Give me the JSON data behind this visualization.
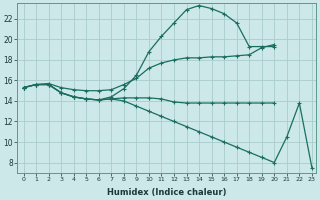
{
  "xlabel": "Humidex (Indice chaleur)",
  "bg_color": "#cce8e8",
  "grid_color": "#aacccc",
  "line_color": "#1a6e60",
  "xlim_min": -0.5,
  "xlim_max": 23.3,
  "ylim_min": 7,
  "ylim_max": 23.5,
  "xticks": [
    0,
    1,
    2,
    3,
    4,
    5,
    6,
    7,
    8,
    9,
    10,
    11,
    12,
    13,
    14,
    15,
    16,
    17,
    18,
    19,
    20,
    21,
    22,
    23
  ],
  "yticks": [
    8,
    10,
    12,
    14,
    16,
    18,
    20,
    22
  ],
  "line1_x": [
    0,
    1,
    2,
    3,
    4,
    5,
    6,
    7,
    8,
    9,
    10,
    11,
    12,
    13,
    14,
    15,
    16,
    17,
    18,
    19,
    20
  ],
  "line1_y": [
    15.3,
    15.6,
    15.6,
    14.8,
    14.4,
    14.2,
    14.1,
    14.2,
    14.3,
    14.3,
    14.3,
    14.2,
    13.9,
    13.8,
    13.8,
    13.8,
    13.8,
    13.8,
    13.8,
    13.8,
    13.8
  ],
  "line2_x": [
    0,
    1,
    2,
    3,
    4,
    5,
    6,
    7,
    8,
    9,
    10,
    11,
    12,
    13,
    14,
    15,
    16,
    17,
    18,
    19,
    20
  ],
  "line2_y": [
    15.3,
    15.6,
    15.6,
    14.8,
    14.4,
    14.2,
    14.1,
    14.4,
    15.2,
    16.5,
    18.8,
    20.3,
    21.6,
    22.9,
    23.3,
    23.0,
    22.5,
    21.6,
    19.3,
    19.3,
    19.3
  ],
  "line3_x": [
    0,
    1,
    2,
    3,
    4,
    5,
    6,
    7,
    8,
    9,
    10,
    11,
    12,
    13,
    14,
    15,
    16,
    17,
    18,
    19,
    20
  ],
  "line3_y": [
    15.3,
    15.6,
    15.7,
    15.3,
    15.1,
    15.0,
    15.0,
    15.1,
    15.6,
    16.2,
    17.2,
    17.7,
    18.0,
    18.2,
    18.2,
    18.3,
    18.3,
    18.4,
    18.5,
    19.2,
    19.5
  ],
  "line4_x": [
    0,
    1,
    2,
    3,
    4,
    5,
    6,
    7,
    8,
    9,
    10,
    11,
    12,
    13,
    14,
    15,
    16,
    17,
    18,
    19,
    20,
    21,
    22,
    23
  ],
  "line4_y": [
    15.3,
    15.6,
    15.6,
    14.8,
    14.4,
    14.2,
    14.1,
    14.2,
    14.0,
    13.5,
    13.0,
    12.5,
    12.0,
    11.5,
    11.0,
    10.5,
    10.0,
    9.5,
    9.0,
    8.5,
    8.0,
    10.5,
    13.8,
    7.5
  ]
}
